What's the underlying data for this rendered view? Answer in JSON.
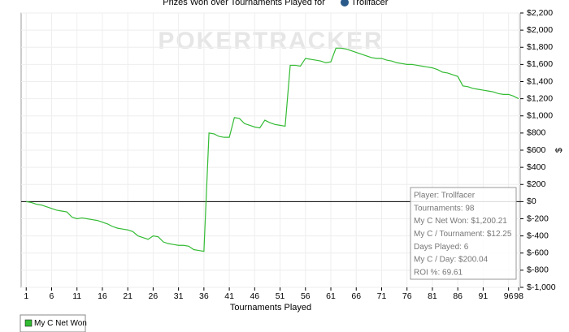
{
  "chart_data": {
    "type": "line",
    "title": "Prizes Won over Tournaments Played for",
    "player": "Trollfacer",
    "watermark": "POKERTRACKER",
    "x_label": "Tournaments Played",
    "y_label": "$",
    "x": [
      1,
      2,
      3,
      4,
      5,
      6,
      7,
      8,
      9,
      10,
      11,
      12,
      13,
      14,
      15,
      16,
      17,
      18,
      19,
      20,
      21,
      22,
      23,
      24,
      25,
      26,
      27,
      28,
      29,
      30,
      31,
      32,
      33,
      34,
      35,
      36,
      37,
      38,
      39,
      40,
      41,
      42,
      43,
      44,
      45,
      46,
      47,
      48,
      49,
      50,
      51,
      52,
      53,
      54,
      55,
      56,
      57,
      58,
      59,
      60,
      61,
      62,
      63,
      64,
      65,
      66,
      67,
      68,
      69,
      70,
      71,
      72,
      73,
      74,
      75,
      76,
      77,
      78,
      79,
      80,
      81,
      82,
      83,
      84,
      85,
      86,
      87,
      88,
      89,
      90,
      91,
      92,
      93,
      94,
      95,
      96,
      97,
      98
    ],
    "series": [
      {
        "name": "My C Net Won",
        "color": "#33bb33",
        "values": [
          0,
          -10,
          -30,
          -40,
          -60,
          -80,
          -100,
          -110,
          -120,
          -180,
          -200,
          -190,
          -200,
          -210,
          -220,
          -240,
          -260,
          -290,
          -310,
          -320,
          -330,
          -350,
          -400,
          -420,
          -440,
          -400,
          -410,
          -470,
          -490,
          -500,
          -510,
          -510,
          -520,
          -560,
          -570,
          -580,
          800,
          790,
          760,
          750,
          750,
          980,
          970,
          910,
          890,
          870,
          860,
          950,
          920,
          900,
          890,
          880,
          1590,
          1590,
          1580,
          1670,
          1660,
          1650,
          1640,
          1620,
          1630,
          1790,
          1790,
          1780,
          1760,
          1740,
          1720,
          1700,
          1680,
          1670,
          1670,
          1650,
          1640,
          1620,
          1610,
          1600,
          1600,
          1590,
          1580,
          1570,
          1560,
          1540,
          1510,
          1500,
          1480,
          1460,
          1350,
          1340,
          1320,
          1310,
          1300,
          1290,
          1280,
          1260,
          1250,
          1250,
          1230,
          1200
        ]
      }
    ],
    "xlim": [
      0,
      98.3
    ],
    "xticks": [
      1,
      6,
      11,
      16,
      21,
      26,
      31,
      36,
      41,
      46,
      51,
      56,
      61,
      66,
      71,
      76,
      81,
      86,
      91,
      96,
      98
    ],
    "ylim": [
      -1000,
      2200
    ],
    "yticks": [
      {
        "value": -1000,
        "label": "$-1,000"
      },
      {
        "value": -800,
        "label": "$-800"
      },
      {
        "value": -600,
        "label": "$-600"
      },
      {
        "value": -400,
        "label": "$-400"
      },
      {
        "value": -200,
        "label": "$-200"
      },
      {
        "value": 0,
        "label": "$0"
      },
      {
        "value": 200,
        "label": "$200"
      },
      {
        "value": 400,
        "label": "$400"
      },
      {
        "value": 600,
        "label": "$600"
      },
      {
        "value": 800,
        "label": "$800"
      },
      {
        "value": 1000,
        "label": "$1,000"
      },
      {
        "value": 1200,
        "label": "$1,200"
      },
      {
        "value": 1400,
        "label": "$1,400"
      },
      {
        "value": 1600,
        "label": "$1,600"
      },
      {
        "value": 1800,
        "label": "$1,800"
      },
      {
        "value": 2000,
        "label": "$2,000"
      },
      {
        "value": 2200,
        "label": "$2,200"
      }
    ],
    "grid": true,
    "stats": [
      "Player: Trollfacer",
      "Tournaments: 98",
      "My C Net Won: $1,200.21",
      "My C / Tournament: $12.25",
      "Days Played: 6",
      "My C / Day: $200.04",
      "ROI %: 69.61"
    ]
  }
}
